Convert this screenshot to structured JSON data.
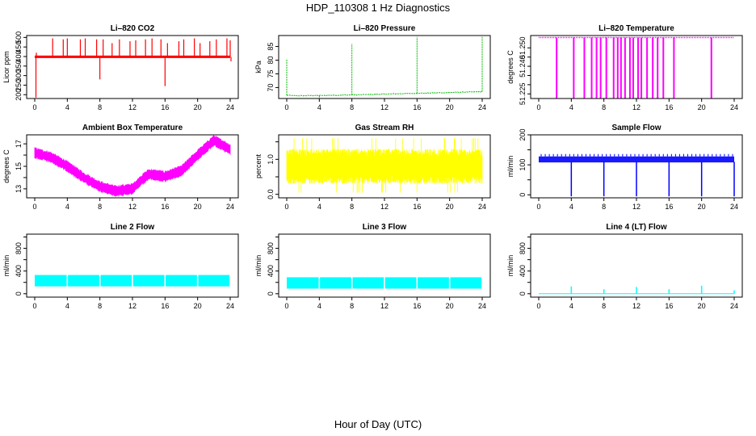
{
  "figure": {
    "title": "HDP_110308  1 Hz Diagnostics",
    "xlabel": "Hour of Day (UTC)"
  },
  "chart_data": [
    {
      "type": "line",
      "title": "Li–820 CO2",
      "ylabel": "Licor ppm",
      "color": "#ff0000",
      "xlim": [
        0,
        24
      ],
      "ylim": [
        180,
        510
      ],
      "yticks": [
        200,
        250,
        300,
        350,
        400,
        450,
        500
      ],
      "xticks": [
        0,
        4,
        8,
        12,
        16,
        20,
        24
      ],
      "baseline": 398,
      "band": [
        392,
        405
      ],
      "spikes_up": [
        [
          0.2,
          420
        ],
        [
          2.2,
          495
        ],
        [
          3.5,
          490
        ],
        [
          4.0,
          495
        ],
        [
          5.6,
          490
        ],
        [
          6.2,
          495
        ],
        [
          7.6,
          490
        ],
        [
          8.4,
          490
        ],
        [
          9.5,
          470
        ],
        [
          10.4,
          490
        ],
        [
          11.7,
          480
        ],
        [
          12.4,
          485
        ],
        [
          13.6,
          490
        ],
        [
          14.4,
          495
        ],
        [
          15.5,
          490
        ],
        [
          16.3,
          470
        ],
        [
          17.7,
          480
        ],
        [
          18.3,
          490
        ],
        [
          19.6,
          495
        ],
        [
          20.3,
          470
        ],
        [
          21.5,
          480
        ],
        [
          22.3,
          490
        ],
        [
          23.6,
          495
        ],
        [
          24.0,
          485
        ]
      ],
      "spikes_down": [
        [
          0.15,
          185
        ],
        [
          8.0,
          280
        ],
        [
          16.0,
          245
        ],
        [
          24.1,
          375
        ]
      ]
    },
    {
      "type": "line",
      "title": "Li–820 Pressure",
      "ylabel": "kPa",
      "color": "#00bb00",
      "xlim": [
        0,
        24
      ],
      "ylim": [
        66,
        89
      ],
      "yticks": [
        70,
        75,
        80,
        85
      ],
      "xticks": [
        0,
        4,
        8,
        12,
        16,
        20,
        24
      ],
      "points": [
        [
          0,
          67.2
        ],
        [
          1,
          67.0
        ],
        [
          4,
          67.1
        ],
        [
          8,
          67.3
        ],
        [
          12,
          67.6
        ],
        [
          16,
          67.9
        ],
        [
          20,
          68.2
        ],
        [
          24,
          68.5
        ]
      ],
      "spikes_up": [
        [
          0.0,
          80.5
        ],
        [
          8.0,
          86.0
        ],
        [
          16.0,
          88.5
        ],
        [
          24.0,
          88.5
        ]
      ],
      "spikes_down": [
        [
          4.0,
          66.4
        ]
      ]
    },
    {
      "type": "line",
      "title": "Li–820 Temperature",
      "ylabel": "degrees C",
      "color": "#ff00ff",
      "xlim": [
        0,
        24
      ],
      "ylim": [
        51.2225,
        51.2567
      ],
      "yticks": [
        51.225,
        51.23,
        51.235,
        51.24,
        51.245,
        51.25
      ],
      "ytick_labels": [
        "51.225",
        "",
        "",
        "51.240",
        "",
        "51.250"
      ],
      "xticks": [
        0,
        4,
        8,
        12,
        16,
        20,
        24
      ],
      "baseline": 51.2556,
      "dips": [
        2.2,
        4.3,
        5.6,
        6.5,
        7.1,
        7.6,
        8.3,
        9.2,
        9.7,
        10.1,
        10.6,
        11.2,
        11.6,
        12.2,
        12.6,
        13.3,
        14.0,
        14.6,
        15.3,
        16.6,
        21.2
      ]
    },
    {
      "type": "line",
      "title": "Ambient Box Temperature",
      "ylabel": "degrees C",
      "color": "#ff00ff",
      "xlim": [
        0,
        24
      ],
      "ylim": [
        12.2,
        17.8
      ],
      "yticks": [
        13,
        15,
        17
      ],
      "extra_ticks": [
        14,
        16
      ],
      "xticks": [
        0,
        4,
        8,
        12,
        16,
        20,
        24
      ],
      "points": [
        [
          0,
          16.2
        ],
        [
          2,
          15.8
        ],
        [
          4,
          15.0
        ],
        [
          6,
          14.0
        ],
        [
          8,
          13.2
        ],
        [
          10,
          12.8
        ],
        [
          12,
          13.0
        ],
        [
          13,
          13.7
        ],
        [
          14,
          14.3
        ],
        [
          16,
          14.1
        ],
        [
          18,
          14.6
        ],
        [
          20,
          16.0
        ],
        [
          22,
          17.3
        ],
        [
          24,
          16.5
        ]
      ],
      "band_halfwidth": 0.4
    },
    {
      "type": "line",
      "title": "Gas Stream RH",
      "ylabel": "percent",
      "color": "#ffff00",
      "xlim": [
        0,
        24
      ],
      "ylim": [
        -0.1,
        1.7
      ],
      "yticks": [
        0.0,
        0.5,
        1.0,
        1.5
      ],
      "ytick_labels": [
        "0.0",
        "",
        "1.0",
        ""
      ],
      "xticks": [
        0,
        4,
        8,
        12,
        16,
        20,
        24
      ],
      "band": [
        0.3,
        1.3
      ],
      "extremes": [
        0.05,
        1.6
      ]
    },
    {
      "type": "line",
      "title": "Sample Flow",
      "ylabel": "ml/min",
      "color": "#0000ff",
      "xlim": [
        0,
        24
      ],
      "ylim": [
        -10,
        200
      ],
      "yticks": [
        0,
        50,
        100,
        150,
        200
      ],
      "ytick_labels": [
        "0",
        "",
        "100",
        "",
        "200"
      ],
      "xticks": [
        0,
        4,
        8,
        12,
        16,
        20,
        24
      ],
      "baseline": 110,
      "band": [
        108,
        128
      ],
      "dropouts": [
        4.0,
        8.0,
        12.0,
        16.0,
        20.0,
        24.0
      ]
    },
    {
      "type": "line",
      "title": "Line 2 Flow",
      "ylabel": "ml/min",
      "color": "#00ffff",
      "xlim": [
        0,
        24
      ],
      "ylim": [
        -60,
        1050
      ],
      "yticks": [
        0,
        200,
        400,
        600,
        800,
        1000
      ],
      "ytick_labels": [
        "0",
        "",
        "400",
        "",
        "800",
        ""
      ],
      "xticks": [
        0,
        4,
        8,
        12,
        16,
        20,
        24
      ],
      "band": [
        130,
        330
      ],
      "gaps": [
        4.0,
        8.0,
        12.0,
        16.0,
        20.0
      ]
    },
    {
      "type": "line",
      "title": "Line 3 Flow",
      "ylabel": "ml/min",
      "color": "#00ffff",
      "xlim": [
        0,
        24
      ],
      "ylim": [
        -60,
        1050
      ],
      "yticks": [
        0,
        200,
        400,
        600,
        800,
        1000
      ],
      "ytick_labels": [
        "0",
        "",
        "400",
        "",
        "800",
        ""
      ],
      "xticks": [
        0,
        4,
        8,
        12,
        16,
        20,
        24
      ],
      "band": [
        90,
        290
      ],
      "gaps": [
        4.0,
        8.0,
        12.0,
        16.0,
        20.0
      ]
    },
    {
      "type": "line",
      "title": "Line 4 (LT) Flow",
      "ylabel": "ml/min",
      "color": "#00ffff",
      "xlim": [
        0,
        24
      ],
      "ylim": [
        -60,
        1050
      ],
      "yticks": [
        0,
        200,
        400,
        600,
        800,
        1000
      ],
      "ytick_labels": [
        "0",
        "",
        "400",
        "",
        "800",
        ""
      ],
      "xticks": [
        0,
        4,
        8,
        12,
        16,
        20,
        24
      ],
      "baseline": 0,
      "spikes_up": [
        [
          4.0,
          130
        ],
        [
          8.0,
          80
        ],
        [
          12.0,
          120
        ],
        [
          16.0,
          80
        ],
        [
          20.0,
          140
        ],
        [
          24.0,
          60
        ]
      ]
    }
  ]
}
